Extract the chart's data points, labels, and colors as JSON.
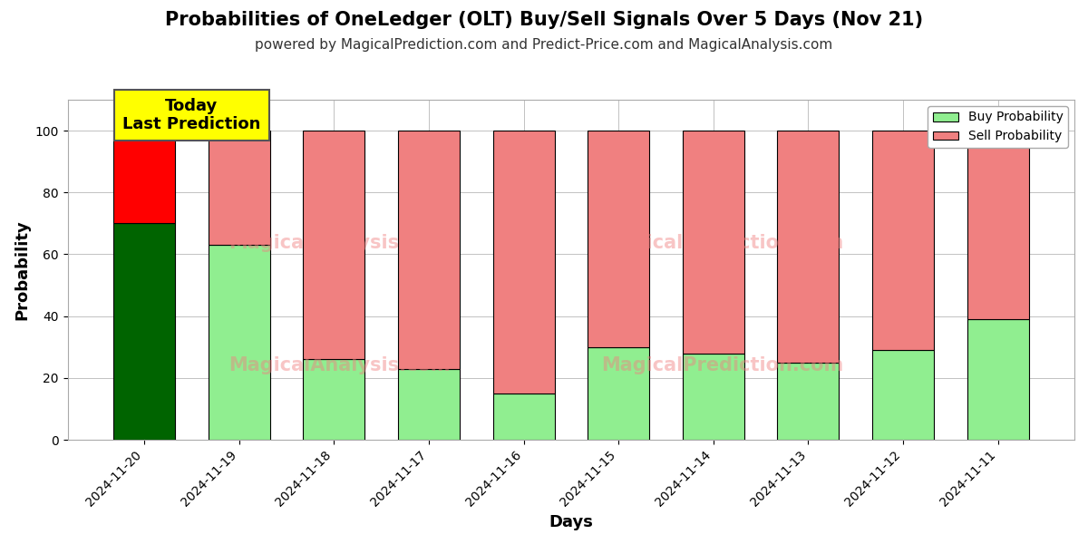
{
  "title": "Probabilities of OneLedger (OLT) Buy/Sell Signals Over 5 Days (Nov 21)",
  "subtitle": "powered by MagicalPrediction.com and Predict-Price.com and MagicalAnalysis.com",
  "xlabel": "Days",
  "ylabel": "Probability",
  "dates": [
    "2024-11-20",
    "2024-11-19",
    "2024-11-18",
    "2024-11-17",
    "2024-11-16",
    "2024-11-15",
    "2024-11-14",
    "2024-11-13",
    "2024-11-12",
    "2024-11-11"
  ],
  "buy_values": [
    70,
    63,
    26,
    23,
    15,
    30,
    28,
    25,
    29,
    39
  ],
  "sell_values": [
    30,
    37,
    74,
    77,
    85,
    70,
    72,
    75,
    71,
    61
  ],
  "today_buy_color": "#006400",
  "today_sell_color": "#ff0000",
  "buy_color": "#90EE90",
  "sell_color": "#F08080",
  "bar_edge_color": "#000000",
  "ylim_max": 110,
  "yticks": [
    0,
    20,
    40,
    60,
    80,
    100
  ],
  "dashed_line_y": 110,
  "today_label": "Today\nLast Prediction",
  "today_box_color": "#ffff00",
  "legend_buy_label": "Buy Probability",
  "legend_sell_label": "Sell Probability",
  "grid_color": "#aaaaaa",
  "background_color": "#ffffff",
  "title_fontsize": 15,
  "subtitle_fontsize": 11,
  "axis_label_fontsize": 13,
  "tick_fontsize": 10,
  "legend_fontsize": 10,
  "today_label_fontsize": 13,
  "bar_width": 0.65
}
